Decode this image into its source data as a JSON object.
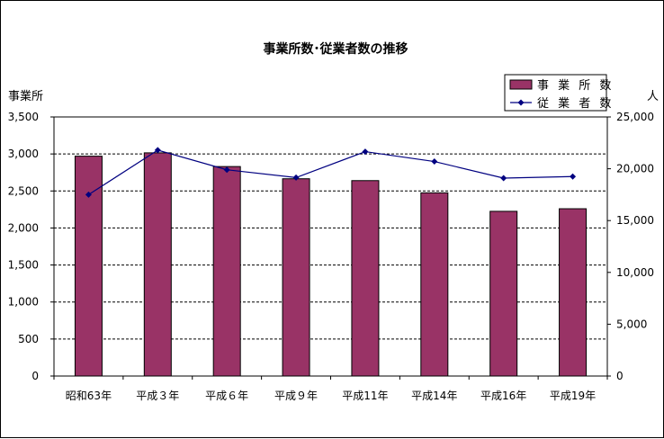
{
  "chart_data": {
    "type": "bar+line",
    "title": "事業所数･従業者数の推移",
    "categories": [
      "昭和63年",
      "平成３年",
      "平成６年",
      "平成９年",
      "平成11年",
      "平成14年",
      "平成16年",
      "平成19年"
    ],
    "series": [
      {
        "name": "事 業 所 数",
        "type": "bar",
        "axis": "left",
        "values": [
          2970,
          3015,
          2830,
          2665,
          2640,
          2475,
          2225,
          2260
        ],
        "color": "#993366"
      },
      {
        "name": "従 業 者 数",
        "type": "line",
        "axis": "right",
        "values": [
          17500,
          21800,
          19900,
          19150,
          21650,
          20700,
          19100,
          19250
        ],
        "color": "#000080"
      }
    ],
    "y_left": {
      "label": "事業所",
      "ylim": [
        0,
        3500
      ],
      "ticks": [
        "0",
        "500",
        "1,000",
        "1,500",
        "2,000",
        "2,500",
        "3,000",
        "3,500"
      ],
      "tick_values": [
        0,
        500,
        1000,
        1500,
        2000,
        2500,
        3000,
        3500
      ]
    },
    "y_right": {
      "label": "人",
      "ylim": [
        0,
        25000
      ],
      "ticks": [
        "0",
        "5,000",
        "10,000",
        "15,000",
        "20,000",
        "25,000"
      ],
      "tick_values": [
        0,
        5000,
        10000,
        15000,
        20000,
        25000
      ]
    },
    "grid": "horizontal-dashed",
    "legend_position": "top-right"
  }
}
